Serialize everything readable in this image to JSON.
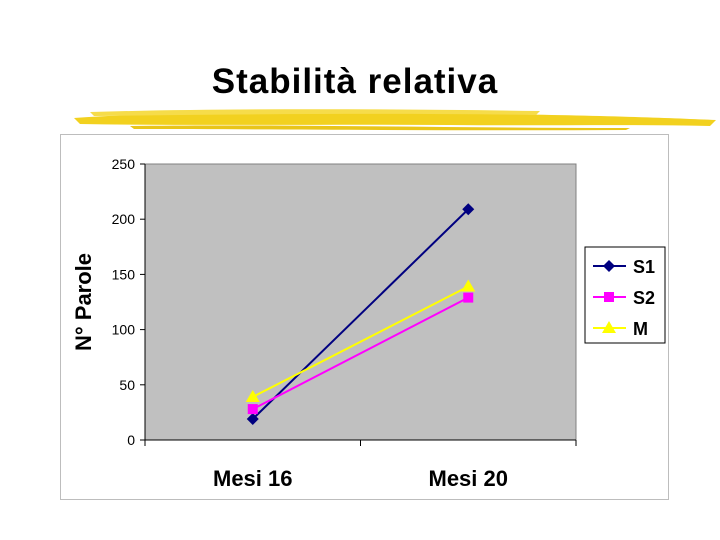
{
  "slide": {
    "title": "Stabilità relativa",
    "underline_color": "#f2d11f"
  },
  "chart_data": {
    "type": "line",
    "categories": [
      "Mesi 16",
      "Mesi 20"
    ],
    "ylabel": "N° Parole",
    "ylim": [
      0,
      250
    ],
    "yticks": [
      0,
      50,
      100,
      150,
      200,
      250
    ],
    "grid": false,
    "plot_background": "#c0c0c0",
    "legend_position": "right",
    "series": [
      {
        "name": "S1",
        "values": [
          19,
          209
        ],
        "color": "#000080",
        "marker": "diamond"
      },
      {
        "name": "S2",
        "values": [
          28,
          129
        ],
        "color": "#ff00ff",
        "marker": "square"
      },
      {
        "name": "M",
        "values": [
          39,
          139
        ],
        "color": "#ffff00",
        "marker": "triangle"
      }
    ]
  }
}
